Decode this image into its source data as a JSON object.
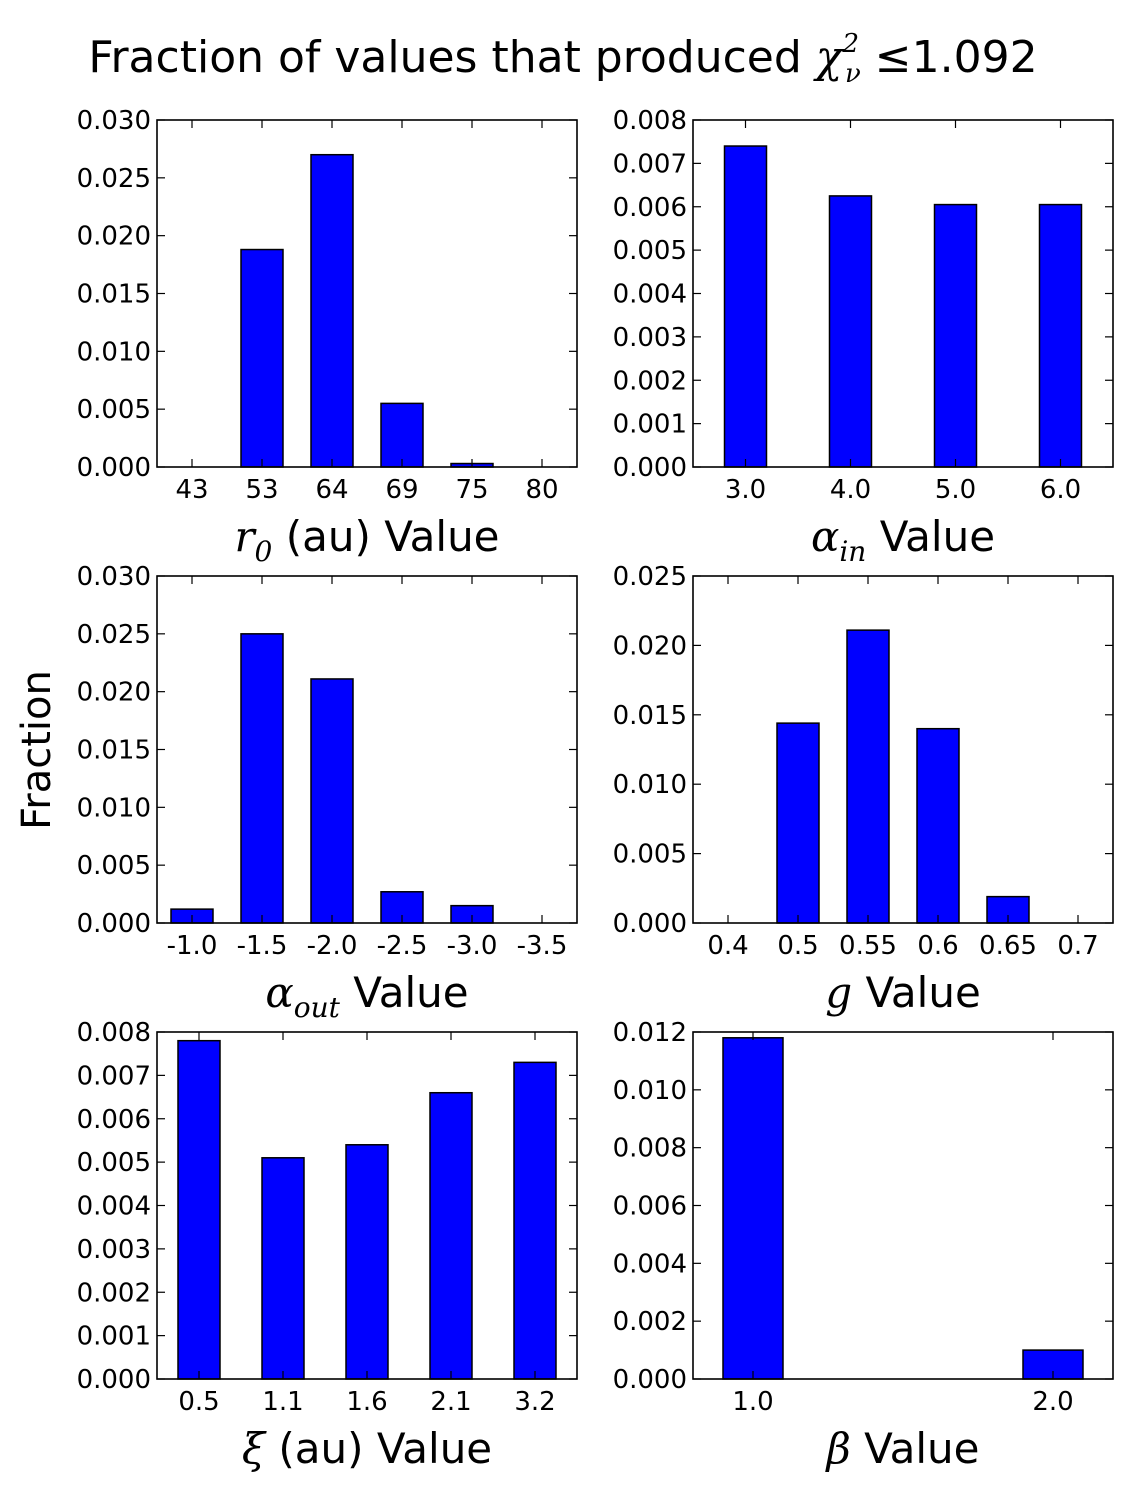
{
  "figure": {
    "title_prefix": "Fraction of values that produced ",
    "title_symbol": "χ",
    "title_superscript": "2",
    "title_subscript": "ν",
    "title_suffix": " ≤1.092",
    "ylabel": "Fraction",
    "bar_color": "#0000ff"
  },
  "chart_data": [
    {
      "type": "bar",
      "xlabel_symbol": "r",
      "xlabel_subscript": "0",
      "xlabel_text": " (au) Value",
      "ylabel": "Fraction",
      "categories": [
        "43",
        "53",
        "64",
        "69",
        "75",
        "80"
      ],
      "values": [
        0.0,
        0.0188,
        0.027,
        0.0055,
        0.0003,
        0.0
      ],
      "ylim": [
        0,
        0.03
      ],
      "yticks": [
        "0.000",
        "0.005",
        "0.010",
        "0.015",
        "0.020",
        "0.025",
        "0.030"
      ]
    },
    {
      "type": "bar",
      "xlabel_symbol": "α",
      "xlabel_subscript": "in",
      "xlabel_text": " Value",
      "ylabel": "Fraction",
      "categories": [
        "3.0",
        "4.0",
        "5.0",
        "6.0"
      ],
      "values": [
        0.0074,
        0.00625,
        0.00605,
        0.00605
      ],
      "ylim": [
        0,
        0.008
      ],
      "yticks": [
        "0.000",
        "0.001",
        "0.002",
        "0.003",
        "0.004",
        "0.005",
        "0.006",
        "0.007",
        "0.008"
      ]
    },
    {
      "type": "bar",
      "xlabel_symbol": "α",
      "xlabel_subscript": "out",
      "xlabel_text": " Value",
      "ylabel": "Fraction",
      "categories": [
        "-1.0",
        "-1.5",
        "-2.0",
        "-2.5",
        "-3.0",
        "-3.5"
      ],
      "values": [
        0.0012,
        0.025,
        0.0211,
        0.0027,
        0.0015,
        0.0
      ],
      "ylim": [
        0,
        0.03
      ],
      "yticks": [
        "0.000",
        "0.005",
        "0.010",
        "0.015",
        "0.020",
        "0.025",
        "0.030"
      ]
    },
    {
      "type": "bar",
      "xlabel_symbol": "g",
      "xlabel_subscript": "",
      "xlabel_text": " Value",
      "ylabel": "Fraction",
      "categories": [
        "0.4",
        "0.5",
        "0.55",
        "0.6",
        "0.65",
        "0.7"
      ],
      "values": [
        0.0,
        0.0144,
        0.0211,
        0.014,
        0.0019,
        0.0
      ],
      "ylim": [
        0,
        0.025
      ],
      "yticks": [
        "0.000",
        "0.005",
        "0.010",
        "0.015",
        "0.020",
        "0.025"
      ]
    },
    {
      "type": "bar",
      "xlabel_symbol": "ξ",
      "xlabel_subscript": "",
      "xlabel_text": " (au) Value",
      "ylabel": "Fraction",
      "categories": [
        "0.5",
        "1.1",
        "1.6",
        "2.1",
        "3.2"
      ],
      "values": [
        0.0078,
        0.0051,
        0.0054,
        0.0066,
        0.0073
      ],
      "ylim": [
        0,
        0.008
      ],
      "yticks": [
        "0.000",
        "0.001",
        "0.002",
        "0.003",
        "0.004",
        "0.005",
        "0.006",
        "0.007",
        "0.008"
      ]
    },
    {
      "type": "bar",
      "xlabel_symbol": "β",
      "xlabel_subscript": "",
      "xlabel_text": " Value",
      "ylabel": "Fraction",
      "categories": [
        "1.0",
        "2.0"
      ],
      "values": [
        0.0118,
        0.001
      ],
      "ylim": [
        0,
        0.012
      ],
      "yticks": [
        "0.000",
        "0.002",
        "0.004",
        "0.006",
        "0.008",
        "0.010",
        "0.012"
      ]
    }
  ]
}
